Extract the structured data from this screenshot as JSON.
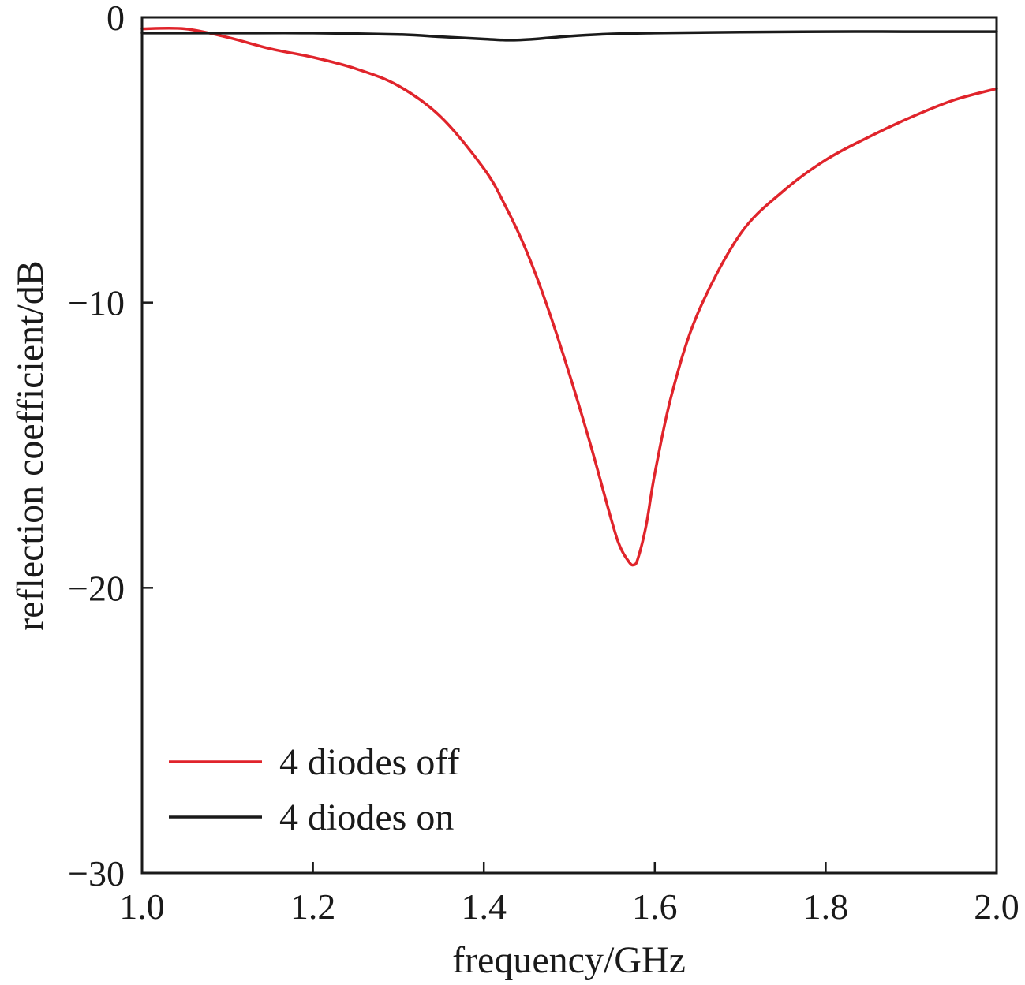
{
  "chart_data": {
    "type": "line",
    "xlabel": "frequency/GHz",
    "ylabel": "reflection coefficient/dB",
    "xlim": [
      1.0,
      2.0
    ],
    "ylim": [
      -30,
      0
    ],
    "x_ticks": [
      1.0,
      1.2,
      1.4,
      1.6,
      1.8,
      2.0
    ],
    "x_tick_labels": [
      "1.0",
      "1.2",
      "1.4",
      "1.6",
      "1.8",
      "2.0"
    ],
    "y_ticks": [
      0,
      -10,
      -20,
      -30
    ],
    "y_tick_labels": [
      "0",
      "−10",
      "−20",
      "−30"
    ],
    "grid": false,
    "legend_position": "bottom-left",
    "series": [
      {
        "name": "4 diodes off",
        "color": "#e0242b",
        "x": [
          1.0,
          1.05,
          1.1,
          1.15,
          1.2,
          1.25,
          1.3,
          1.35,
          1.4,
          1.425,
          1.45,
          1.475,
          1.5,
          1.525,
          1.55,
          1.56,
          1.57,
          1.575,
          1.58,
          1.59,
          1.6,
          1.62,
          1.65,
          1.7,
          1.75,
          1.8,
          1.85,
          1.9,
          1.95,
          2.0
        ],
        "y": [
          -0.4,
          -0.4,
          -0.7,
          -1.1,
          -1.4,
          -1.8,
          -2.4,
          -3.5,
          -5.3,
          -6.6,
          -8.2,
          -10.2,
          -12.5,
          -15.0,
          -17.7,
          -18.6,
          -19.1,
          -19.2,
          -19.0,
          -17.8,
          -16.0,
          -13.2,
          -10.4,
          -7.6,
          -6.1,
          -5.0,
          -4.2,
          -3.5,
          -2.9,
          -2.5
        ]
      },
      {
        "name": "4 diodes on",
        "color": "#1a1a1a",
        "x": [
          1.0,
          1.1,
          1.2,
          1.3,
          1.35,
          1.4,
          1.43,
          1.46,
          1.5,
          1.55,
          1.6,
          1.7,
          1.8,
          1.9,
          2.0
        ],
        "y": [
          -0.55,
          -0.55,
          -0.55,
          -0.6,
          -0.68,
          -0.76,
          -0.8,
          -0.76,
          -0.66,
          -0.58,
          -0.55,
          -0.52,
          -0.5,
          -0.5,
          -0.5
        ]
      }
    ]
  }
}
